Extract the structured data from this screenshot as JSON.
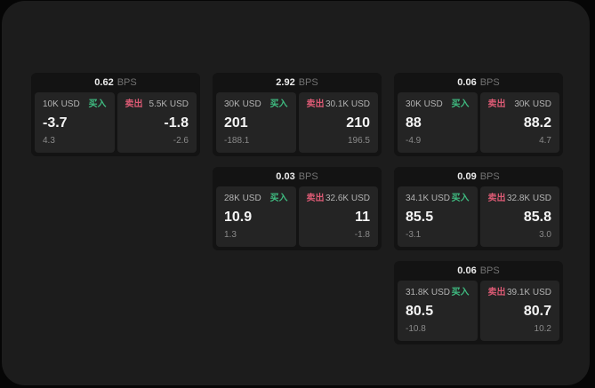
{
  "labels": {
    "buy": "买入",
    "sell": "卖出",
    "bps": "BPS"
  },
  "colors": {
    "background": "#060606",
    "panel": "#1c1c1c",
    "card": "#131313",
    "subpanel": "#242424",
    "buy": "#3fbc81",
    "sell": "#db5a74"
  },
  "cards": [
    {
      "row": 1,
      "col": 1,
      "bps": "0.62",
      "buy": {
        "amount": "10K USD",
        "price": "-3.7",
        "delta": "4.3"
      },
      "sell": {
        "amount": "5.5K USD",
        "price": "-1.8",
        "delta": "-2.6"
      }
    },
    {
      "row": 1,
      "col": 2,
      "bps": "2.92",
      "buy": {
        "amount": "30K USD",
        "price": "201",
        "delta": "-188.1"
      },
      "sell": {
        "amount": "30.1K USD",
        "price": "210",
        "delta": "196.5"
      }
    },
    {
      "row": 1,
      "col": 3,
      "bps": "0.06",
      "buy": {
        "amount": "30K USD",
        "price": "88",
        "delta": "-4.9"
      },
      "sell": {
        "amount": "30K USD",
        "price": "88.2",
        "delta": "4.7"
      }
    },
    {
      "row": 2,
      "col": 2,
      "bps": "0.03",
      "buy": {
        "amount": "28K USD",
        "price": "10.9",
        "delta": "1.3"
      },
      "sell": {
        "amount": "32.6K USD",
        "price": "11",
        "delta": "-1.8"
      }
    },
    {
      "row": 2,
      "col": 3,
      "bps": "0.09",
      "buy": {
        "amount": "34.1K USD",
        "price": "85.5",
        "delta": "-3.1"
      },
      "sell": {
        "amount": "32.8K USD",
        "price": "85.8",
        "delta": "3.0"
      }
    },
    {
      "row": 3,
      "col": 3,
      "bps": "0.06",
      "buy": {
        "amount": "31.8K USD",
        "price": "80.5",
        "delta": "-10.8"
      },
      "sell": {
        "amount": "39.1K USD",
        "price": "80.7",
        "delta": "10.2"
      }
    }
  ]
}
